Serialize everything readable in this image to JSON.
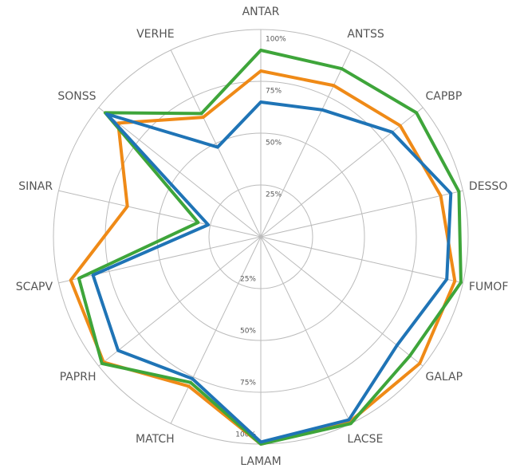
{
  "chart_data": {
    "type": "radar",
    "categories": [
      "ANTAR",
      "ANTSS",
      "CAPBP",
      "DESSO",
      "FUMOF",
      "GALAP",
      "LACSE",
      "LAMAM",
      "MATCH",
      "PAPRH",
      "SCAPV",
      "SINAR",
      "SONSS",
      "VERHE"
    ],
    "series": [
      {
        "color": "#ef8a17",
        "values": [
          80,
          81,
          86,
          89,
          96,
          98,
          99,
          100,
          80,
          97,
          94,
          66,
          88,
          64
        ]
      },
      {
        "color": "#3ea53a",
        "values": [
          90,
          90,
          96,
          98,
          99,
          92,
          100,
          100,
          78,
          98,
          90,
          31,
          96,
          66
        ]
      },
      {
        "color": "#1f74b6",
        "values": [
          65,
          68,
          81,
          94,
          92,
          84,
          98,
          99,
          76,
          88,
          83,
          26,
          95,
          48
        ]
      }
    ],
    "rlim": [
      0,
      100
    ],
    "rticks": [
      {
        "value": 25,
        "label": "25%"
      },
      {
        "value": 50,
        "label": "50%"
      },
      {
        "value": 75,
        "label": "75%"
      },
      {
        "value": 100,
        "label": "100%"
      }
    ],
    "grid": true
  }
}
